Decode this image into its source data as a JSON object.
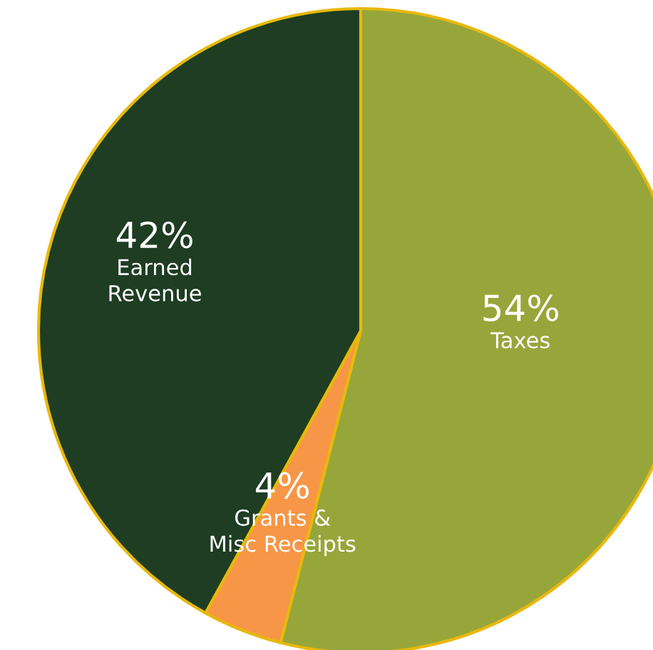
{
  "chart_data": {
    "type": "pie",
    "categories": [
      "Taxes",
      "Grants &\nMisc Receipts",
      "Earned\nRevenue"
    ],
    "values": [
      54,
      4,
      42
    ],
    "value_labels": [
      "54%",
      "4%",
      "42%"
    ],
    "colors": [
      "#97a63a",
      "#f79646",
      "#1e3d22"
    ],
    "legend": false
  }
}
